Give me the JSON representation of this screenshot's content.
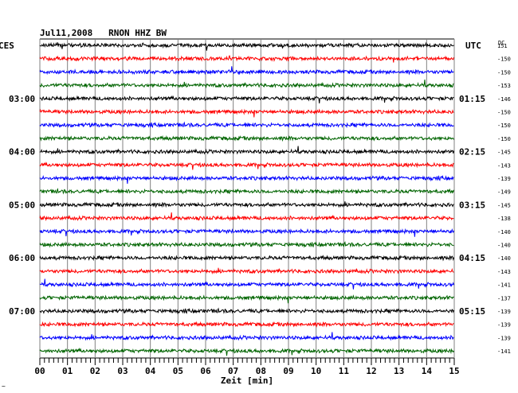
{
  "chart_data": {
    "type": "line",
    "title": "Jul11,2008   RNON HHZ BW",
    "left_axis_label": "CES",
    "right_axis_label": "UTC",
    "dc_label": "DC",
    "xlabel": "Zeit [min]",
    "x_ticks": [
      "00",
      "01",
      "02",
      "03",
      "04",
      "05",
      "06",
      "07",
      "08",
      "09",
      "10",
      "11",
      "12",
      "13",
      "14",
      "15"
    ],
    "xlim": [
      0,
      15
    ],
    "trace_count": 24,
    "trace_colors": [
      "#000000",
      "#ff0000",
      "#0000ff",
      "#006400"
    ],
    "left_time_labels": [
      {
        "trace": 4,
        "label": "03:00"
      },
      {
        "trace": 8,
        "label": "04:00"
      },
      {
        "trace": 12,
        "label": "05:00"
      },
      {
        "trace": 16,
        "label": "06:00"
      },
      {
        "trace": 20,
        "label": "07:00"
      }
    ],
    "right_time_labels": [
      {
        "trace": 4,
        "label": "01:15"
      },
      {
        "trace": 8,
        "label": "02:15"
      },
      {
        "trace": 12,
        "label": "03:15"
      },
      {
        "trace": 16,
        "label": "04:15"
      },
      {
        "trace": 20,
        "label": "05:15"
      }
    ],
    "dc_values": [
      "151",
      "-150",
      "-150",
      "-153",
      "-146",
      "-150",
      "-150",
      "-150",
      "-145",
      "-143",
      "-139",
      "-149",
      "-145",
      "-138",
      "-140",
      "-140",
      "-140",
      "-143",
      "-141",
      "-137",
      "-139",
      "-139",
      "-139",
      "-141"
    ],
    "footer_mark": "~"
  }
}
